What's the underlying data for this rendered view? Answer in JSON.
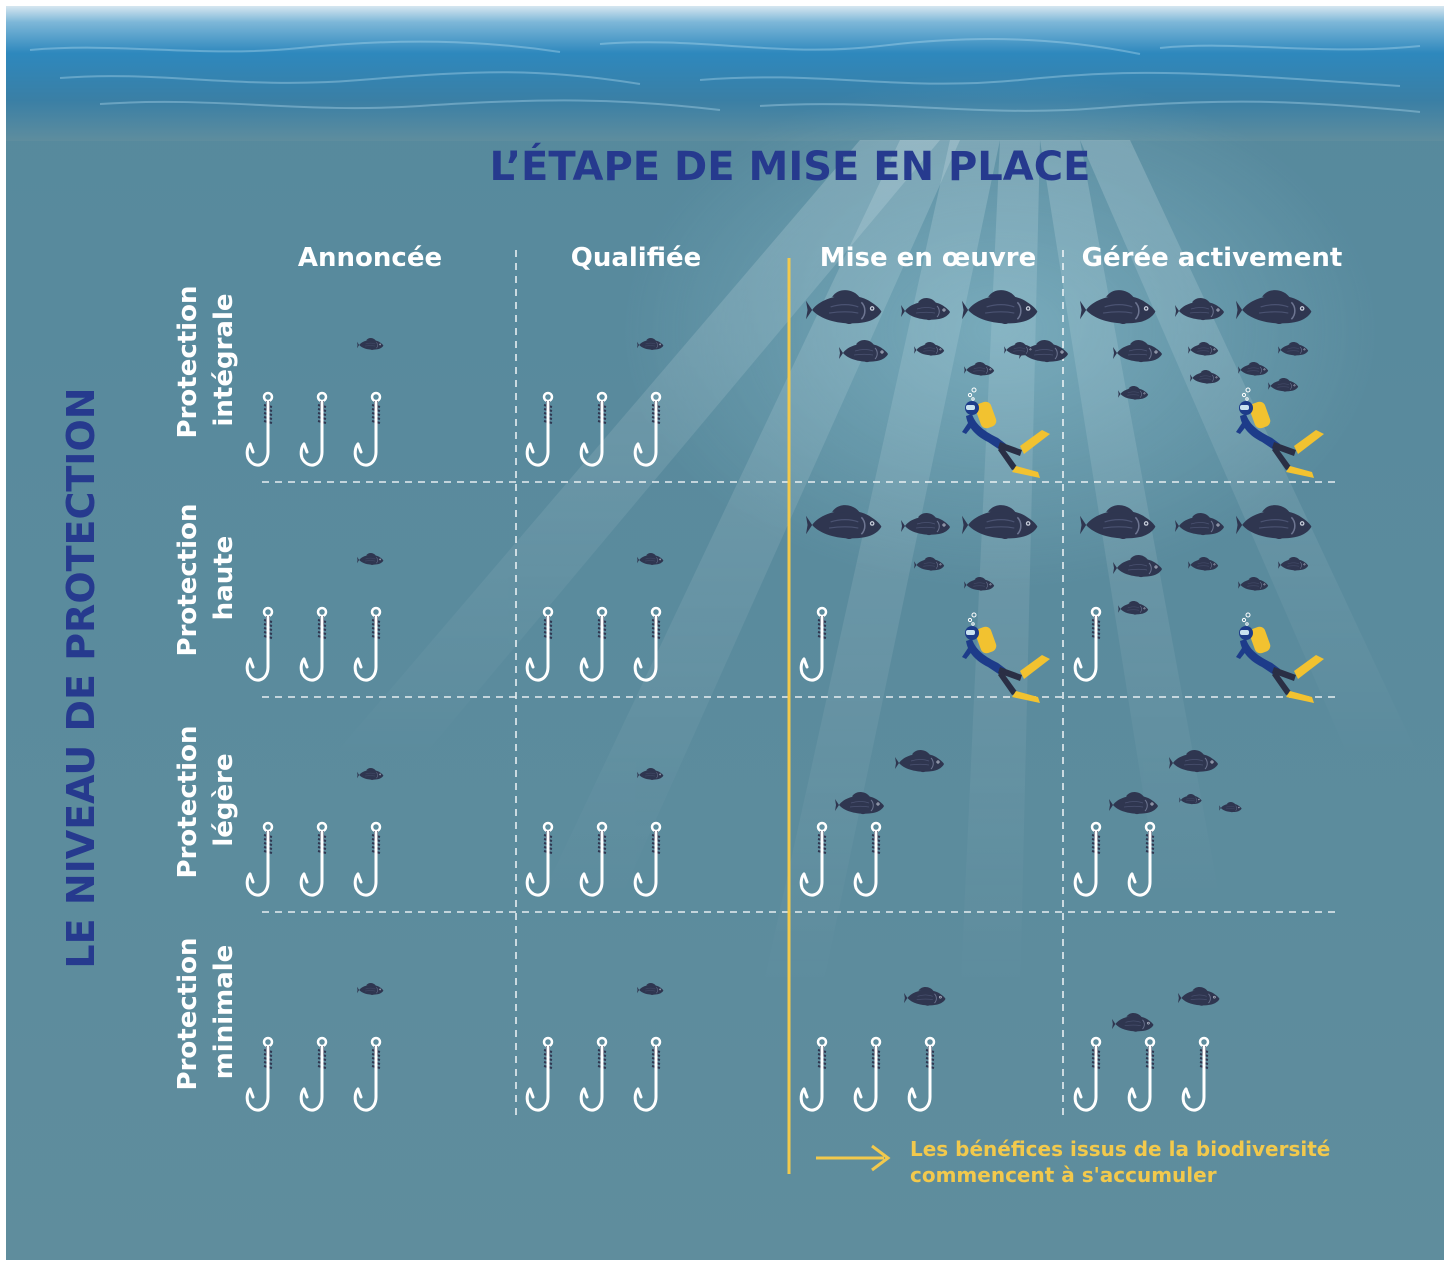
{
  "title": "L’ÉTAPE DE MISE EN PLACE",
  "side_title": "LE NIVEAU DE PROTECTION",
  "columns": [
    "Annoncée",
    "Qualifiée",
    "Mise en œuvre",
    "Gérée activement"
  ],
  "rows": [
    {
      "line1": "Protection",
      "line2": "intégrale"
    },
    {
      "line1": "Protection",
      "line2": "haute"
    },
    {
      "line1": "Protection",
      "line2": "légère"
    },
    {
      "line1": "Protection",
      "line2": "minimale"
    }
  ],
  "note": {
    "line1": "Les bénéfices issus de la biodiversité",
    "line2": "commencent à s'accumuler"
  },
  "colors": {
    "title": "#263a8e",
    "water": "#5e8d9e",
    "surface": "#2f86b8",
    "accent": "#f2c94c",
    "fish": "#2f3650",
    "hook": "#ffffff",
    "diver_tank": "#f2c230",
    "diver_suit": "#1d3c8a"
  },
  "icons": {
    "fish": "fish-icon",
    "hook": "fishing-hook-icon",
    "diver": "scuba-diver-icon",
    "arrow": "arrow-right-icon"
  },
  "grid": {
    "cells": [
      {
        "row": 0,
        "col": 0,
        "hooks": 3,
        "fish_large": 0,
        "fish_medium": 0,
        "fish_small": 1,
        "diver": false
      },
      {
        "row": 0,
        "col": 1,
        "hooks": 3,
        "fish_large": 0,
        "fish_medium": 0,
        "fish_small": 1,
        "diver": false
      },
      {
        "row": 0,
        "col": 2,
        "hooks": 0,
        "fish_large": 2,
        "fish_medium": 3,
        "fish_small": 3,
        "diver": true
      },
      {
        "row": 0,
        "col": 3,
        "hooks": 0,
        "fish_large": 2,
        "fish_medium": 2,
        "fish_small": 6,
        "diver": true
      },
      {
        "row": 1,
        "col": 0,
        "hooks": 3,
        "fish_large": 0,
        "fish_medium": 0,
        "fish_small": 1,
        "diver": false
      },
      {
        "row": 1,
        "col": 1,
        "hooks": 3,
        "fish_large": 0,
        "fish_medium": 0,
        "fish_small": 1,
        "diver": false
      },
      {
        "row": 1,
        "col": 2,
        "hooks": 1,
        "fish_large": 2,
        "fish_medium": 1,
        "fish_small": 2,
        "diver": true
      },
      {
        "row": 1,
        "col": 3,
        "hooks": 1,
        "fish_large": 2,
        "fish_medium": 2,
        "fish_small": 4,
        "diver": true
      },
      {
        "row": 2,
        "col": 0,
        "hooks": 3,
        "fish_large": 0,
        "fish_medium": 0,
        "fish_small": 1,
        "diver": false
      },
      {
        "row": 2,
        "col": 1,
        "hooks": 3,
        "fish_large": 0,
        "fish_medium": 0,
        "fish_small": 1,
        "diver": false
      },
      {
        "row": 2,
        "col": 2,
        "hooks": 2,
        "fish_large": 0,
        "fish_medium": 2,
        "fish_small": 0,
        "diver": false
      },
      {
        "row": 2,
        "col": 3,
        "hooks": 2,
        "fish_large": 0,
        "fish_medium": 2,
        "fish_small": 2,
        "diver": false
      },
      {
        "row": 3,
        "col": 0,
        "hooks": 3,
        "fish_large": 0,
        "fish_medium": 0,
        "fish_small": 1,
        "diver": false
      },
      {
        "row": 3,
        "col": 1,
        "hooks": 3,
        "fish_large": 0,
        "fish_medium": 0,
        "fish_small": 1,
        "diver": false
      },
      {
        "row": 3,
        "col": 2,
        "hooks": 3,
        "fish_large": 0,
        "fish_medium": 1,
        "fish_small": 0,
        "diver": false
      },
      {
        "row": 3,
        "col": 3,
        "hooks": 3,
        "fish_large": 0,
        "fish_medium": 2,
        "fish_small": 0,
        "diver": false
      }
    ]
  }
}
